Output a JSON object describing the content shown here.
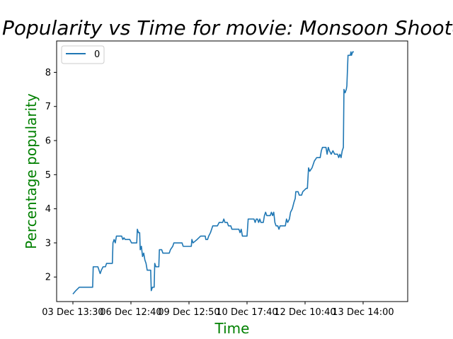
{
  "chart_data": {
    "type": "line",
    "title": "for Popularity vs Time for movie: Monsoon Shootout",
    "xlabel": "Time",
    "ylabel": "Percentage popularity",
    "label_color": "#008000",
    "line_color": "#1f77b4",
    "xticks": [
      "03 Dec 13:30",
      "06 Dec 12:40",
      "09 Dec 12:50",
      "10 Dec 17:40",
      "12 Dec 10:40",
      "13 Dec 14:00"
    ],
    "yticks": [
      "2",
      "3",
      "4",
      "5",
      "6",
      "7",
      "8"
    ],
    "ylim": [
      1.28,
      8.92
    ],
    "legend": {
      "placement": "top-left",
      "entries": [
        "0"
      ]
    },
    "series": [
      {
        "name": "0",
        "points": [
          [
            0.0,
            1.5
          ],
          [
            0.25,
            1.6
          ],
          [
            0.55,
            1.7
          ],
          [
            1.2,
            1.7
          ],
          [
            1.5,
            1.7
          ],
          [
            1.7,
            1.7
          ],
          [
            1.75,
            2.3
          ],
          [
            2.15,
            2.3
          ],
          [
            2.25,
            2.2
          ],
          [
            2.35,
            2.1
          ],
          [
            2.45,
            2.2
          ],
          [
            2.6,
            2.3
          ],
          [
            2.8,
            2.3
          ],
          [
            2.9,
            2.4
          ],
          [
            3.4,
            2.4
          ],
          [
            3.45,
            3.0
          ],
          [
            3.55,
            3.1
          ],
          [
            3.65,
            3.0
          ],
          [
            3.75,
            3.2
          ],
          [
            4.2,
            3.2
          ],
          [
            4.3,
            3.1
          ],
          [
            4.4,
            3.15
          ],
          [
            4.5,
            3.1
          ],
          [
            4.7,
            3.1
          ],
          [
            4.9,
            3.1
          ],
          [
            5.05,
            3.0
          ],
          [
            5.5,
            3.0
          ],
          [
            5.55,
            3.4
          ],
          [
            5.65,
            3.3
          ],
          [
            5.75,
            3.3
          ],
          [
            5.8,
            2.8
          ],
          [
            5.9,
            2.9
          ],
          [
            6.0,
            2.6
          ],
          [
            6.1,
            2.7
          ],
          [
            6.2,
            2.5
          ],
          [
            6.3,
            2.4
          ],
          [
            6.4,
            2.2
          ],
          [
            6.7,
            2.2
          ],
          [
            6.75,
            1.6
          ],
          [
            6.85,
            1.7
          ],
          [
            7.0,
            1.7
          ],
          [
            7.05,
            2.4
          ],
          [
            7.15,
            2.3
          ],
          [
            7.4,
            2.3
          ],
          [
            7.45,
            2.8
          ],
          [
            7.65,
            2.8
          ],
          [
            7.75,
            2.7
          ],
          [
            8.3,
            2.7
          ],
          [
            8.4,
            2.8
          ],
          [
            8.6,
            2.9
          ],
          [
            8.7,
            3.0
          ],
          [
            9.4,
            3.0
          ],
          [
            9.5,
            2.9
          ],
          [
            10.2,
            2.9
          ],
          [
            10.25,
            3.1
          ],
          [
            10.35,
            3.0
          ],
          [
            10.7,
            3.1
          ],
          [
            11.0,
            3.2
          ],
          [
            11.4,
            3.2
          ],
          [
            11.45,
            3.1
          ],
          [
            11.6,
            3.1
          ],
          [
            11.7,
            3.2
          ],
          [
            11.85,
            3.3
          ],
          [
            11.95,
            3.4
          ],
          [
            12.05,
            3.5
          ],
          [
            12.35,
            3.5
          ],
          [
            12.45,
            3.5
          ],
          [
            12.6,
            3.6
          ],
          [
            12.9,
            3.6
          ],
          [
            13.0,
            3.7
          ],
          [
            13.1,
            3.6
          ],
          [
            13.3,
            3.6
          ],
          [
            13.4,
            3.5
          ],
          [
            13.6,
            3.5
          ],
          [
            13.7,
            3.4
          ],
          [
            14.3,
            3.4
          ],
          [
            14.4,
            3.3
          ],
          [
            14.5,
            3.4
          ],
          [
            14.6,
            3.2
          ],
          [
            15.0,
            3.2
          ],
          [
            15.1,
            3.7
          ],
          [
            15.6,
            3.7
          ],
          [
            15.7,
            3.6
          ],
          [
            15.8,
            3.7
          ],
          [
            15.9,
            3.7
          ],
          [
            16.0,
            3.6
          ],
          [
            16.1,
            3.7
          ],
          [
            16.2,
            3.6
          ],
          [
            16.4,
            3.6
          ],
          [
            16.5,
            3.8
          ],
          [
            16.6,
            3.9
          ],
          [
            16.7,
            3.8
          ],
          [
            17.0,
            3.8
          ],
          [
            17.1,
            3.9
          ],
          [
            17.2,
            3.8
          ],
          [
            17.3,
            3.9
          ],
          [
            17.4,
            3.6
          ],
          [
            17.5,
            3.5
          ],
          [
            17.65,
            3.5
          ],
          [
            17.75,
            3.4
          ],
          [
            17.85,
            3.5
          ],
          [
            18.3,
            3.5
          ],
          [
            18.4,
            3.7
          ],
          [
            18.5,
            3.6
          ],
          [
            18.65,
            3.7
          ],
          [
            18.75,
            3.9
          ],
          [
            18.9,
            4.0
          ],
          [
            19.05,
            4.2
          ],
          [
            19.15,
            4.3
          ],
          [
            19.2,
            4.5
          ],
          [
            19.4,
            4.5
          ],
          [
            19.5,
            4.4
          ],
          [
            19.7,
            4.4
          ],
          [
            19.8,
            4.5
          ],
          [
            20.1,
            4.6
          ],
          [
            20.2,
            4.6
          ],
          [
            20.3,
            5.2
          ],
          [
            20.4,
            5.1
          ],
          [
            20.6,
            5.2
          ],
          [
            20.7,
            5.3
          ],
          [
            20.8,
            5.4
          ],
          [
            21.0,
            5.5
          ],
          [
            21.2,
            5.5
          ],
          [
            21.3,
            5.5
          ],
          [
            21.4,
            5.7
          ],
          [
            21.5,
            5.8
          ],
          [
            21.8,
            5.8
          ],
          [
            21.9,
            5.6
          ],
          [
            22.0,
            5.8
          ],
          [
            22.1,
            5.7
          ],
          [
            22.25,
            5.6
          ],
          [
            22.4,
            5.7
          ],
          [
            22.55,
            5.6
          ],
          [
            22.8,
            5.6
          ],
          [
            22.9,
            5.5
          ],
          [
            23.0,
            5.6
          ],
          [
            23.1,
            5.5
          ],
          [
            23.2,
            5.7
          ],
          [
            23.3,
            5.8
          ],
          [
            23.35,
            7.5
          ],
          [
            23.45,
            7.4
          ],
          [
            23.55,
            7.5
          ],
          [
            23.6,
            7.6
          ],
          [
            23.7,
            8.5
          ],
          [
            23.9,
            8.5
          ],
          [
            23.95,
            8.6
          ],
          [
            24.0,
            8.5
          ],
          [
            24.1,
            8.6
          ],
          [
            24.2,
            8.6
          ]
        ]
      }
    ]
  }
}
